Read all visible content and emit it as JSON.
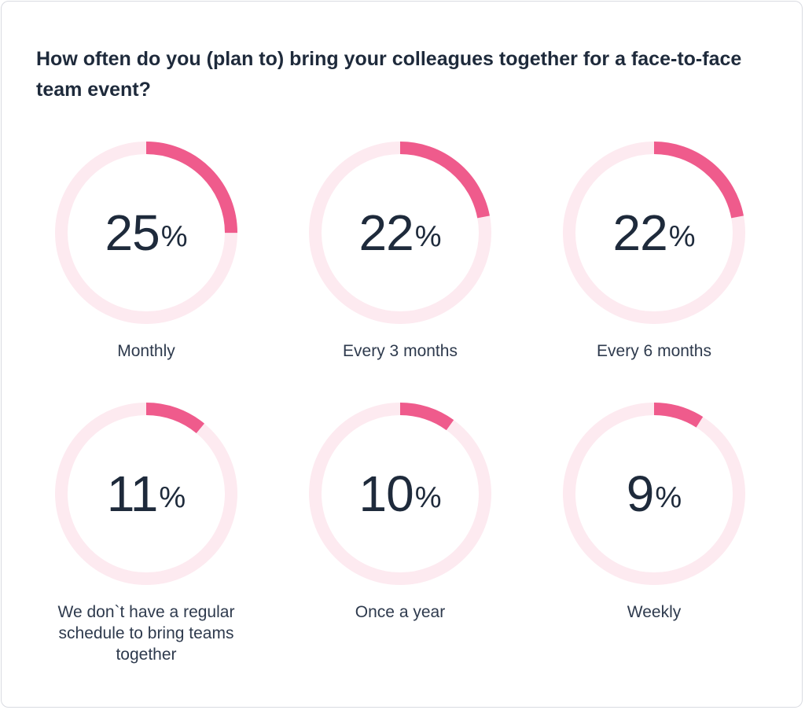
{
  "chart_data": {
    "type": "donut",
    "title": "How often do you (plan to) bring your colleagues together for a face-to-face team event?",
    "unit": "%",
    "colors": {
      "value": "#ef5b8c",
      "track": "#fdeaf0",
      "text": "#1e2a3b"
    },
    "items": [
      {
        "label": "Monthly",
        "value": 25
      },
      {
        "label": "Every 3 months",
        "value": 22
      },
      {
        "label": "Every 6 months",
        "value": 22
      },
      {
        "label": "We don`t have a regular schedule to bring teams together",
        "value": 11
      },
      {
        "label": "Once a year",
        "value": 10
      },
      {
        "label": "Weekly",
        "value": 9
      }
    ]
  }
}
